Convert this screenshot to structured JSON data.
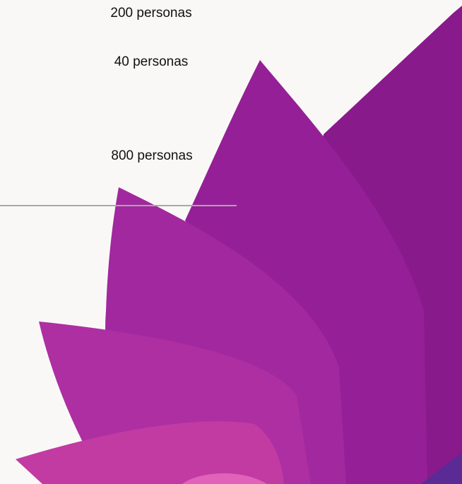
{
  "labels": [
    "200 personas",
    "40 personas",
    "800 personas"
  ]
}
